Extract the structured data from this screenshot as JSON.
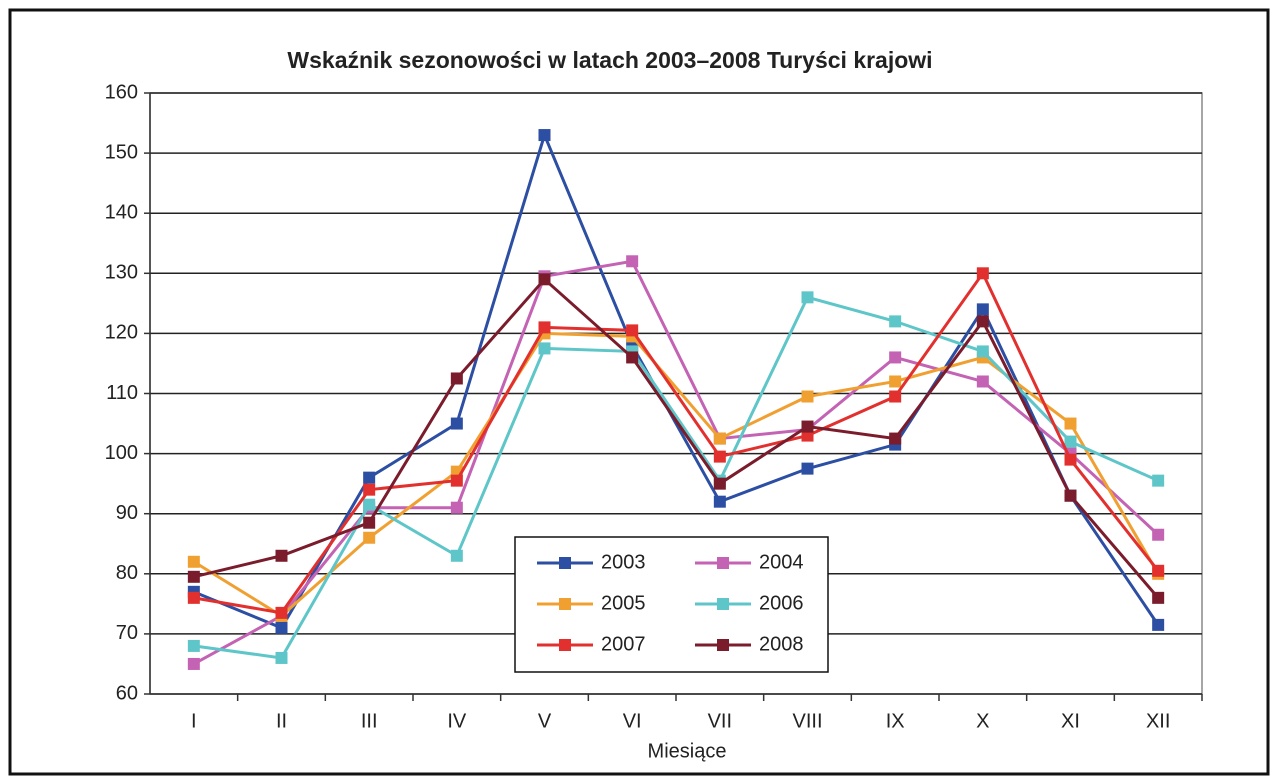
{
  "chart_data": {
    "type": "line",
    "title": "Wskaźnik sezonowości w latach 2003–2008    Turyści krajowi",
    "x_label": "Miesiące",
    "categories": [
      "I",
      "II",
      "III",
      "IV",
      "V",
      "VI",
      "VII",
      "VIII",
      "IX",
      "X",
      "XI",
      "XII"
    ],
    "series": [
      {
        "name": "2003",
        "color": "#2c4ea3",
        "values": [
          77,
          71,
          96,
          105,
          153,
          118,
          92,
          97.5,
          101.5,
          124,
          93,
          71.5
        ]
      },
      {
        "name": "2004",
        "color": "#c462b4",
        "values": [
          65,
          73,
          91,
          91,
          129.5,
          132,
          102.5,
          104,
          116,
          112,
          100,
          86.5
        ]
      },
      {
        "name": "2005",
        "color": "#f0a030",
        "values": [
          82,
          73,
          86,
          97,
          120,
          119.5,
          102.5,
          109.5,
          112,
          116,
          105,
          80
        ]
      },
      {
        "name": "2006",
        "color": "#5ec6c8",
        "values": [
          68,
          66,
          91.5,
          83,
          117.5,
          117,
          95.5,
          126,
          122,
          117,
          102,
          95.5
        ]
      },
      {
        "name": "2007",
        "color": "#e2302e",
        "values": [
          76,
          73.5,
          94,
          95.5,
          121,
          120.5,
          99.5,
          103,
          109.5,
          130,
          99,
          80.5
        ]
      },
      {
        "name": "2008",
        "color": "#7a1c2c",
        "values": [
          79.5,
          83,
          88.5,
          112.5,
          129,
          116,
          95,
          104.5,
          102.5,
          122,
          93,
          76
        ]
      }
    ],
    "ylim": [
      60,
      160
    ],
    "yticks": [
      60,
      70,
      80,
      90,
      100,
      110,
      120,
      130,
      140,
      150,
      160
    ],
    "grid": true,
    "legend": "lower center"
  }
}
